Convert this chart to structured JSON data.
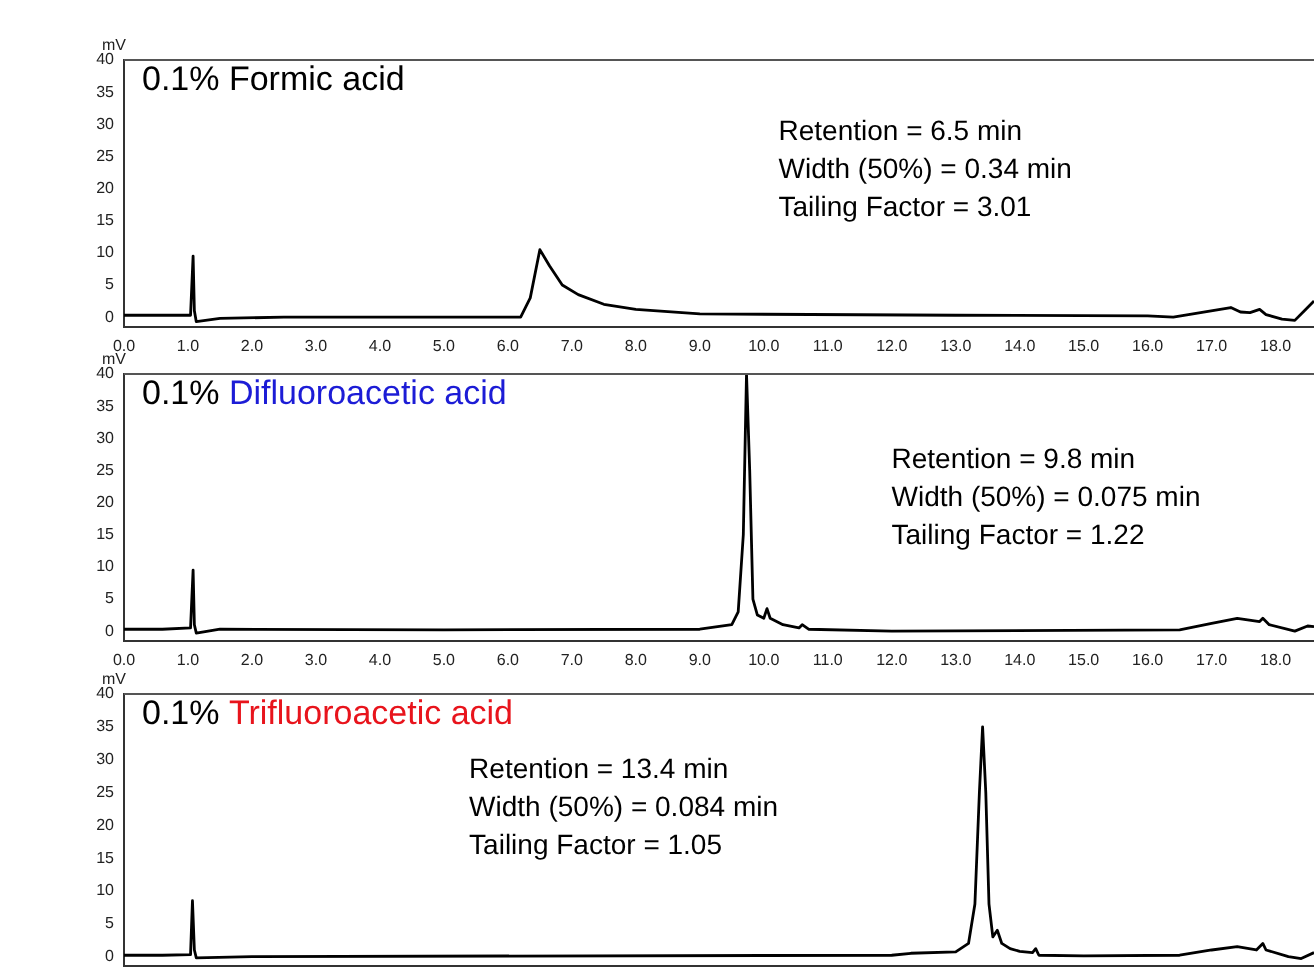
{
  "chart_data": [
    {
      "type": "line",
      "title": "0.1% Formic acid",
      "ylabel": "mV",
      "annotations": [
        "Retention = 6.5 min",
        "Width (50%) = 0.34 min",
        "Tailing Factor = 3.01"
      ],
      "marker": "none",
      "line_style": "solid",
      "x": [
        0,
        0.6,
        1.04,
        1.08,
        1.1,
        1.13,
        1.5,
        2.5,
        6.2,
        6.35,
        6.5,
        6.65,
        6.85,
        7.1,
        7.5,
        8,
        9,
        13,
        16,
        16.4,
        17.3,
        17.45,
        17.6,
        17.75,
        17.85,
        18.1,
        18.3,
        18.45,
        18.6
      ],
      "series": [
        {
          "color": "#000000",
          "values": [
            0.3,
            0.3,
            0.3,
            9.5,
            1,
            -0.7,
            -0.2,
            0,
            0,
            3,
            10.5,
            8,
            5,
            3.5,
            2,
            1.2,
            0.5,
            0.3,
            0.2,
            0,
            1.5,
            0.8,
            0.7,
            1.2,
            0.4,
            -0.3,
            -0.5,
            1,
            2.5
          ]
        }
      ],
      "xlim": [
        0,
        18.6
      ],
      "ylim": [
        -1.5,
        40
      ],
      "xticks": [
        {
          "value": 0,
          "label": "0.0"
        },
        {
          "value": 1,
          "label": "1.0"
        },
        {
          "value": 2,
          "label": "2.0"
        },
        {
          "value": 3,
          "label": "3.0"
        },
        {
          "value": 4,
          "label": "4.0"
        },
        {
          "value": 5,
          "label": "5.0"
        },
        {
          "value": 6,
          "label": "6.0"
        },
        {
          "value": 7,
          "label": "7.0"
        },
        {
          "value": 8,
          "label": "8.0"
        },
        {
          "value": 9,
          "label": "9.0"
        },
        {
          "value": 10,
          "label": "10.0"
        },
        {
          "value": 11,
          "label": "11.0"
        },
        {
          "value": 12,
          "label": "12.0"
        },
        {
          "value": 13,
          "label": "13.0"
        },
        {
          "value": 14,
          "label": "14.0"
        },
        {
          "value": 15,
          "label": "15.0"
        },
        {
          "value": 16,
          "label": "16.0"
        },
        {
          "value": 17,
          "label": "17.0"
        },
        {
          "value": 18,
          "label": "18.0"
        }
      ],
      "yticks": [
        0,
        5,
        10,
        15,
        20,
        25,
        30,
        35,
        40
      ]
    },
    {
      "type": "line",
      "title": "0.1% Difluoroacetic acid",
      "ylabel": "mV",
      "annotations": [
        "Retention = 9.8 min",
        "Width (50%) = 0.075 min",
        "Tailing Factor = 1.22"
      ],
      "marker": "none",
      "line_style": "solid",
      "x": [
        0,
        0.6,
        1.04,
        1.08,
        1.1,
        1.13,
        1.5,
        5,
        9,
        9.5,
        9.6,
        9.68,
        9.73,
        9.78,
        9.83,
        9.9,
        10,
        10.05,
        10.1,
        10.3,
        10.55,
        10.6,
        10.7,
        12,
        16.5,
        17,
        17.4,
        17.75,
        17.8,
        17.9,
        18.3,
        18.5,
        18.6
      ],
      "series": [
        {
          "color": "#000000",
          "values": [
            0.3,
            0.3,
            0.5,
            9.5,
            1,
            -0.3,
            0.3,
            0.2,
            0.3,
            1,
            3,
            15,
            40,
            25,
            5,
            2.5,
            2,
            3.5,
            2,
            1,
            0.5,
            1,
            0.3,
            0,
            0.2,
            1.2,
            2,
            1.5,
            2,
            1,
            0,
            0.8,
            0.7
          ]
        }
      ],
      "xlim": [
        0,
        18.6
      ],
      "ylim": [
        -1.5,
        40
      ],
      "xticks": [
        {
          "value": 0,
          "label": "0.0"
        },
        {
          "value": 1,
          "label": "1.0"
        },
        {
          "value": 2,
          "label": "2.0"
        },
        {
          "value": 3,
          "label": "3.0"
        },
        {
          "value": 4,
          "label": "4.0"
        },
        {
          "value": 5,
          "label": "5.0"
        },
        {
          "value": 6,
          "label": "6.0"
        },
        {
          "value": 7,
          "label": "7.0"
        },
        {
          "value": 8,
          "label": "8.0"
        },
        {
          "value": 9,
          "label": "9.0"
        },
        {
          "value": 10,
          "label": "10.0"
        },
        {
          "value": 11,
          "label": "11.0"
        },
        {
          "value": 12,
          "label": "12.0"
        },
        {
          "value": 13,
          "label": "13.0"
        },
        {
          "value": 14,
          "label": "14.0"
        },
        {
          "value": 15,
          "label": "15.0"
        },
        {
          "value": 16,
          "label": "16.0"
        },
        {
          "value": 17,
          "label": "17.0"
        },
        {
          "value": 18,
          "label": "18.0"
        }
      ],
      "yticks": [
        0,
        5,
        10,
        15,
        20,
        25,
        30,
        35,
        40
      ]
    },
    {
      "type": "line",
      "title": "0.1% Trifluoroacetic acid",
      "ylabel": "mV",
      "annotations": [
        "Retention = 13.4 min",
        "Width (50%) = 0.084 min",
        "Tailing Factor = 1.05"
      ],
      "marker": "none",
      "line_style": "solid",
      "tick_labels": "y",
      "x": [
        0,
        0.6,
        1.04,
        1.07,
        1.1,
        1.13,
        2,
        12,
        12.3,
        13,
        13.2,
        13.3,
        13.37,
        13.42,
        13.47,
        13.52,
        13.58,
        13.65,
        13.72,
        13.85,
        14,
        14.2,
        14.25,
        14.3,
        15,
        16.5,
        17,
        17.4,
        17.7,
        17.8,
        17.85,
        18.2,
        18.4,
        18.6
      ],
      "series": [
        {
          "color": "#000000",
          "values": [
            0.2,
            0.2,
            0.3,
            8.5,
            1,
            -0.2,
            0,
            0.2,
            0.5,
            0.7,
            2,
            8,
            25,
            35,
            25,
            8,
            3,
            4,
            2,
            1.2,
            0.8,
            0.6,
            1.2,
            0.2,
            0.1,
            0.2,
            1,
            1.5,
            1,
            2,
            1,
            0,
            -0.3,
            0.6
          ]
        }
      ],
      "xlim": [
        0,
        18.6
      ],
      "ylim": [
        -1.5,
        40
      ],
      "xticks": [
        {
          "value": 0,
          "label": null
        },
        {
          "value": 1,
          "label": null
        },
        {
          "value": 2,
          "label": null
        },
        {
          "value": 3,
          "label": null
        },
        {
          "value": 4,
          "label": null
        },
        {
          "value": 5,
          "label": null
        },
        {
          "value": 6,
          "label": null
        },
        {
          "value": 7,
          "label": null
        },
        {
          "value": 8,
          "label": null
        },
        {
          "value": 9,
          "label": null
        },
        {
          "value": 10,
          "label": null
        },
        {
          "value": 11,
          "label": null
        },
        {
          "value": 12,
          "label": null
        },
        {
          "value": 13,
          "label": null
        },
        {
          "value": 14,
          "label": null
        },
        {
          "value": 15,
          "label": null
        },
        {
          "value": 16,
          "label": null
        },
        {
          "value": 17,
          "label": null
        },
        {
          "value": 18,
          "label": null
        }
      ],
      "yticks": [
        0,
        5,
        10,
        15,
        20,
        25,
        30,
        35,
        40
      ]
    }
  ]
}
